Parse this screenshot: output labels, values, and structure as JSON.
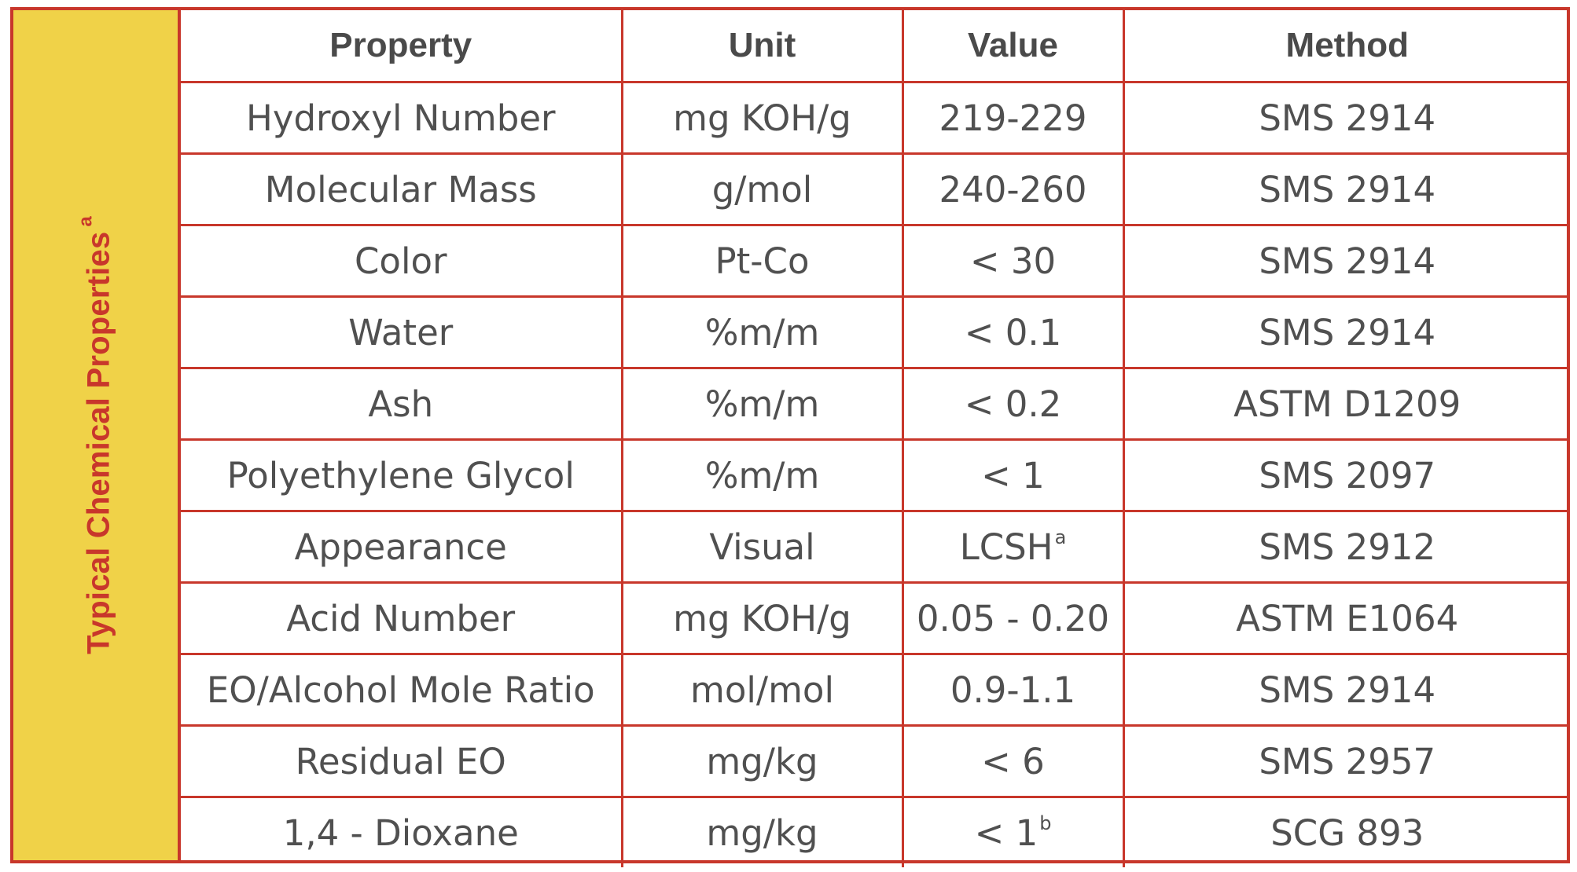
{
  "sidebar": {
    "title": "Typical Chemical Properties",
    "title_superscript": "a"
  },
  "table": {
    "headers": [
      "Property",
      "Unit",
      "Value",
      "Method"
    ],
    "rows": [
      {
        "property": "Hydroxyl Number",
        "unit": "mg KOH/g",
        "value": "219-229",
        "value_sup": "",
        "method": "SMS 2914"
      },
      {
        "property": "Molecular Mass",
        "unit": "g/mol",
        "value": "240-260",
        "value_sup": "",
        "method": "SMS 2914"
      },
      {
        "property": "Color",
        "unit": "Pt-Co",
        "value": "< 30",
        "value_sup": "",
        "method": "SMS 2914"
      },
      {
        "property": "Water",
        "unit": "%m/m",
        "value": "< 0.1",
        "value_sup": "",
        "method": "SMS 2914"
      },
      {
        "property": "Ash",
        "unit": "%m/m",
        "value": "< 0.2",
        "value_sup": "",
        "method": "ASTM D1209"
      },
      {
        "property": "Polyethylene Glycol",
        "unit": "%m/m",
        "value": "< 1",
        "value_sup": "",
        "method": "SMS 2097"
      },
      {
        "property": "Appearance",
        "unit": "Visual",
        "value": "LCSH",
        "value_sup": "a",
        "method": "SMS 2912"
      },
      {
        "property": "Acid Number",
        "unit": "mg KOH/g",
        "value": "0.05 - 0.20",
        "value_sup": "",
        "method": "ASTM E1064"
      },
      {
        "property": "EO/Alcohol Mole Ratio",
        "unit": "mol/mol",
        "value": "0.9-1.1",
        "value_sup": "",
        "method": "SMS 2914"
      },
      {
        "property": "Residual EO",
        "unit": "mg/kg",
        "value": "< 6",
        "value_sup": "",
        "method": "SMS 2957"
      },
      {
        "property": "1,4 - Dioxane",
        "unit": "mg/kg",
        "value": "< 1",
        "value_sup": "b",
        "method": "SCG  893"
      }
    ]
  },
  "colors": {
    "border": "#c8372b",
    "sidebar_bg": "#f0d248",
    "title_text": "#c8372b",
    "body_text": "#4a4a4a"
  }
}
